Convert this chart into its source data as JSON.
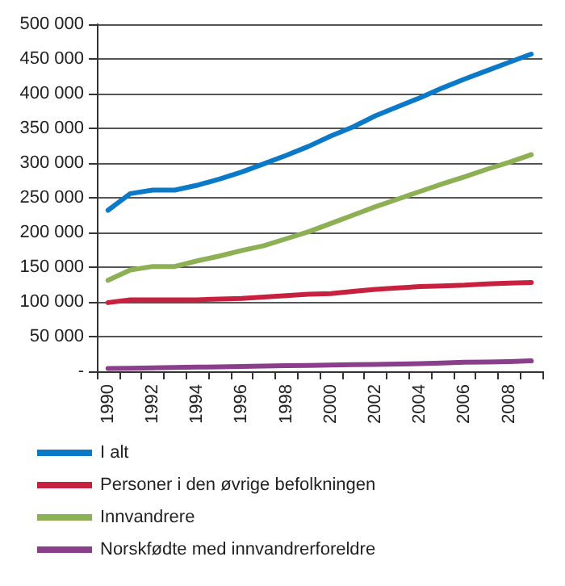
{
  "chart_data": {
    "type": "line",
    "categories": [
      "1990",
      null,
      "1992",
      null,
      "1994",
      null,
      "1996",
      null,
      "1998",
      null,
      "2000",
      null,
      "2002",
      null,
      "2004",
      null,
      "2006",
      null,
      "2008",
      null
    ],
    "series": [
      {
        "name": "I alt",
        "color": "#0a7ac8",
        "values": [
          232000,
          256000,
          261000,
          261000,
          268000,
          277000,
          287000,
          299000,
          311000,
          324000,
          339000,
          352000,
          368000,
          381000,
          394000,
          408000,
          421000,
          433000,
          445000,
          457000
        ]
      },
      {
        "name": "Personer i den øvrige befolkningen",
        "color": "#c8203f",
        "values": [
          99000,
          103000,
          103000,
          103000,
          103000,
          104000,
          105000,
          107000,
          109000,
          111000,
          112000,
          115000,
          118000,
          120000,
          122000,
          123000,
          124000,
          126000,
          127000,
          128000
        ]
      },
      {
        "name": "Innvandrere",
        "color": "#8db054",
        "values": [
          131000,
          146000,
          151000,
          151000,
          159000,
          166000,
          174000,
          181000,
          191000,
          201000,
          213000,
          225000,
          237000,
          248000,
          259000,
          270000,
          280000,
          291000,
          301000,
          312000
        ]
      },
      {
        "name": "Norskfødte med innvandrerforeldre",
        "color": "#8a3f8a",
        "values": [
          4000,
          4500,
          5000,
          5500,
          6000,
          6500,
          7000,
          7500,
          8000,
          8500,
          9000,
          9500,
          10000,
          10500,
          11000,
          12000,
          13000,
          13500,
          14000,
          15000
        ]
      }
    ],
    "ylim": [
      0,
      500000
    ],
    "yticks": [
      {
        "value": 0,
        "label": "-"
      },
      {
        "value": 50000,
        "label": "50 000"
      },
      {
        "value": 100000,
        "label": "100 000"
      },
      {
        "value": 150000,
        "label": "150 000"
      },
      {
        "value": 200000,
        "label": "200 000"
      },
      {
        "value": 250000,
        "label": "250 000"
      },
      {
        "value": 300000,
        "label": "300 000"
      },
      {
        "value": 350000,
        "label": "350 000"
      },
      {
        "value": 400000,
        "label": "400 000"
      },
      {
        "value": 450000,
        "label": "450 000"
      },
      {
        "value": 500000,
        "label": "500 000"
      }
    ],
    "grid": "y",
    "legend": "bottom",
    "marker": "none",
    "line_style": "solid"
  }
}
